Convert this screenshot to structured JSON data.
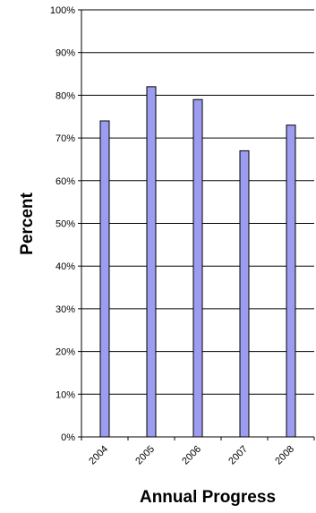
{
  "chart_data": {
    "type": "bar",
    "categories": [
      "2004",
      "2005",
      "2006",
      "2007",
      "2008"
    ],
    "values": [
      74,
      82,
      79,
      67,
      73
    ],
    "xlabel": "Annual Progress",
    "ylabel": "Percent",
    "ylim": [
      0,
      100
    ],
    "yticks": [
      "0%",
      "10%",
      "20%",
      "30%",
      "40%",
      "50%",
      "60%",
      "70%",
      "80%",
      "90%",
      "100%"
    ],
    "grid": true,
    "bar_color": "#9c9cf0"
  }
}
